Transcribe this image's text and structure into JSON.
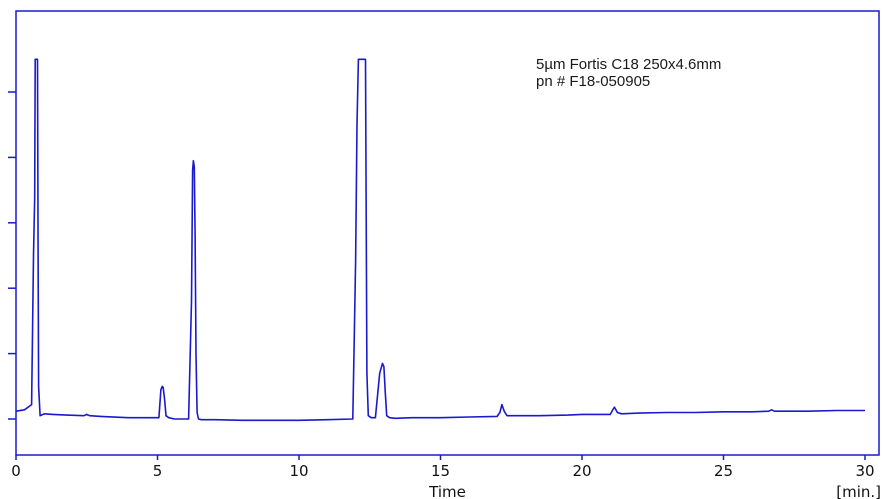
{
  "chart_data": {
    "type": "line",
    "title": "",
    "xlabel": "Time",
    "xunit": "[min.]",
    "ylabel": "",
    "xlim": [
      0,
      30
    ],
    "ylim": [
      0,
      5
    ],
    "x_ticks": [
      0,
      5,
      10,
      15,
      20,
      25,
      30
    ],
    "x_tick_labels": [
      "0",
      "5",
      "10",
      "15",
      "20",
      "25",
      "30"
    ],
    "y_ticks": [
      0,
      1,
      2,
      3,
      4,
      5
    ],
    "y_tick_labels": [],
    "grid": false,
    "annotations": [
      "5µm Fortis C18 250x4.6mm",
      "pn # F18-050905"
    ],
    "series": [
      {
        "color": "#1a1acc",
        "x": [
          0,
          0.3,
          0.55,
          0.62,
          0.66,
          0.68,
          0.7,
          0.72,
          0.74,
          0.76,
          0.78,
          0.8,
          0.85,
          0.9,
          1.0,
          1.3,
          1.8,
          2.4,
          2.5,
          2.55,
          2.6,
          3.0,
          4.0,
          5.05,
          5.12,
          5.17,
          5.2,
          5.25,
          5.3,
          5.4,
          5.6,
          6.1,
          6.2,
          6.24,
          6.27,
          6.3,
          6.33,
          6.36,
          6.4,
          6.45,
          6.55,
          7.0,
          8.0,
          9.0,
          10.0,
          11.0,
          11.9,
          12.0,
          12.05,
          12.1,
          12.13,
          12.17,
          12.2,
          12.25,
          12.3,
          12.35,
          12.4,
          12.45,
          12.55,
          12.7,
          12.85,
          12.95,
          13.0,
          13.05,
          13.1,
          13.2,
          13.4,
          14.0,
          15.0,
          16.0,
          17.0,
          17.1,
          17.17,
          17.25,
          17.35,
          17.6,
          18.5,
          19.5,
          20.0,
          20.5,
          21.0,
          21.1,
          21.15,
          21.25,
          21.4,
          22.0,
          23.0,
          24.0,
          25.0,
          26.0,
          26.6,
          26.7,
          26.8,
          27.0,
          28.0,
          29.0,
          30.0
        ],
        "values": [
          0.12,
          0.14,
          0.22,
          2.5,
          3.4,
          5.5,
          5.5,
          5.5,
          5.5,
          5.5,
          2.5,
          0.5,
          0.05,
          0.06,
          0.08,
          0.07,
          0.06,
          0.05,
          0.07,
          0.06,
          0.05,
          0.04,
          0.02,
          0.02,
          0.45,
          0.5,
          0.48,
          0.3,
          0.05,
          0.02,
          0.0,
          0.0,
          1.8,
          3.8,
          3.95,
          3.85,
          2.8,
          1.0,
          0.1,
          0.0,
          -0.01,
          -0.01,
          -0.02,
          -0.02,
          -0.02,
          -0.01,
          0.0,
          2.4,
          4.5,
          5.5,
          5.5,
          5.5,
          5.5,
          5.5,
          5.5,
          5.5,
          0.7,
          0.05,
          0.02,
          0.02,
          0.7,
          0.85,
          0.8,
          0.4,
          0.05,
          0.02,
          0.01,
          0.02,
          0.02,
          0.03,
          0.04,
          0.1,
          0.22,
          0.12,
          0.05,
          0.05,
          0.05,
          0.06,
          0.07,
          0.07,
          0.07,
          0.15,
          0.18,
          0.1,
          0.08,
          0.09,
          0.1,
          0.1,
          0.11,
          0.11,
          0.12,
          0.14,
          0.12,
          0.12,
          0.12,
          0.13,
          0.13
        ]
      }
    ]
  }
}
